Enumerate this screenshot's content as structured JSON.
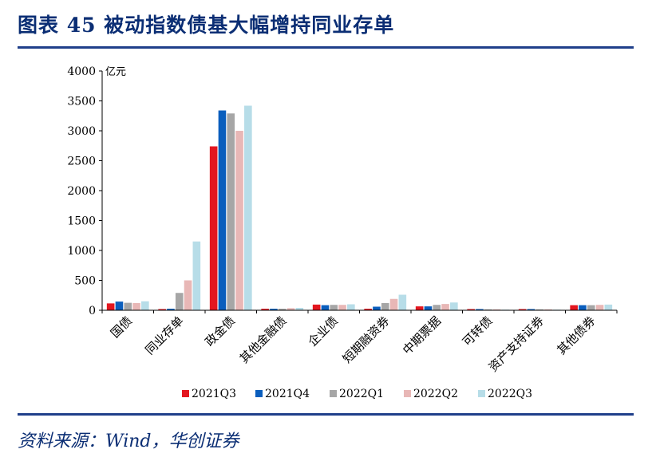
{
  "title": "图表 45  被动指数债基大幅增持同业存单",
  "source": "资料来源：Wind，华创证券",
  "chart_data": {
    "type": "bar",
    "ylabel": "亿元",
    "ylim": [
      0,
      4000
    ],
    "yticks": [
      0,
      500,
      1000,
      1500,
      2000,
      2500,
      3000,
      3500,
      4000
    ],
    "legend_position": "bottom",
    "categories": [
      "国债",
      "同业存单",
      "政金债",
      "其他金融债",
      "企业债",
      "短期融资券",
      "中期票据",
      "可转债",
      "资产支持证券",
      "其他债券"
    ],
    "series": [
      {
        "name": "2021Q3",
        "color": "#e3161f",
        "values": [
          115,
          20,
          2740,
          25,
          95,
          25,
          65,
          20,
          20,
          85
        ]
      },
      {
        "name": "2021Q4",
        "color": "#0a5ebd",
        "values": [
          145,
          25,
          3340,
          25,
          85,
          60,
          65,
          20,
          20,
          85
        ]
      },
      {
        "name": "2022Q1",
        "color": "#a6a6a6",
        "values": [
          125,
          290,
          3290,
          25,
          90,
          120,
          90,
          15,
          15,
          85
        ]
      },
      {
        "name": "2022Q2",
        "color": "#e8b7b6",
        "values": [
          120,
          500,
          3000,
          35,
          90,
          190,
          105,
          15,
          15,
          90
        ]
      },
      {
        "name": "2022Q3",
        "color": "#b7dde8",
        "values": [
          150,
          1150,
          3420,
          40,
          100,
          260,
          130,
          10,
          10,
          95
        ]
      }
    ]
  }
}
